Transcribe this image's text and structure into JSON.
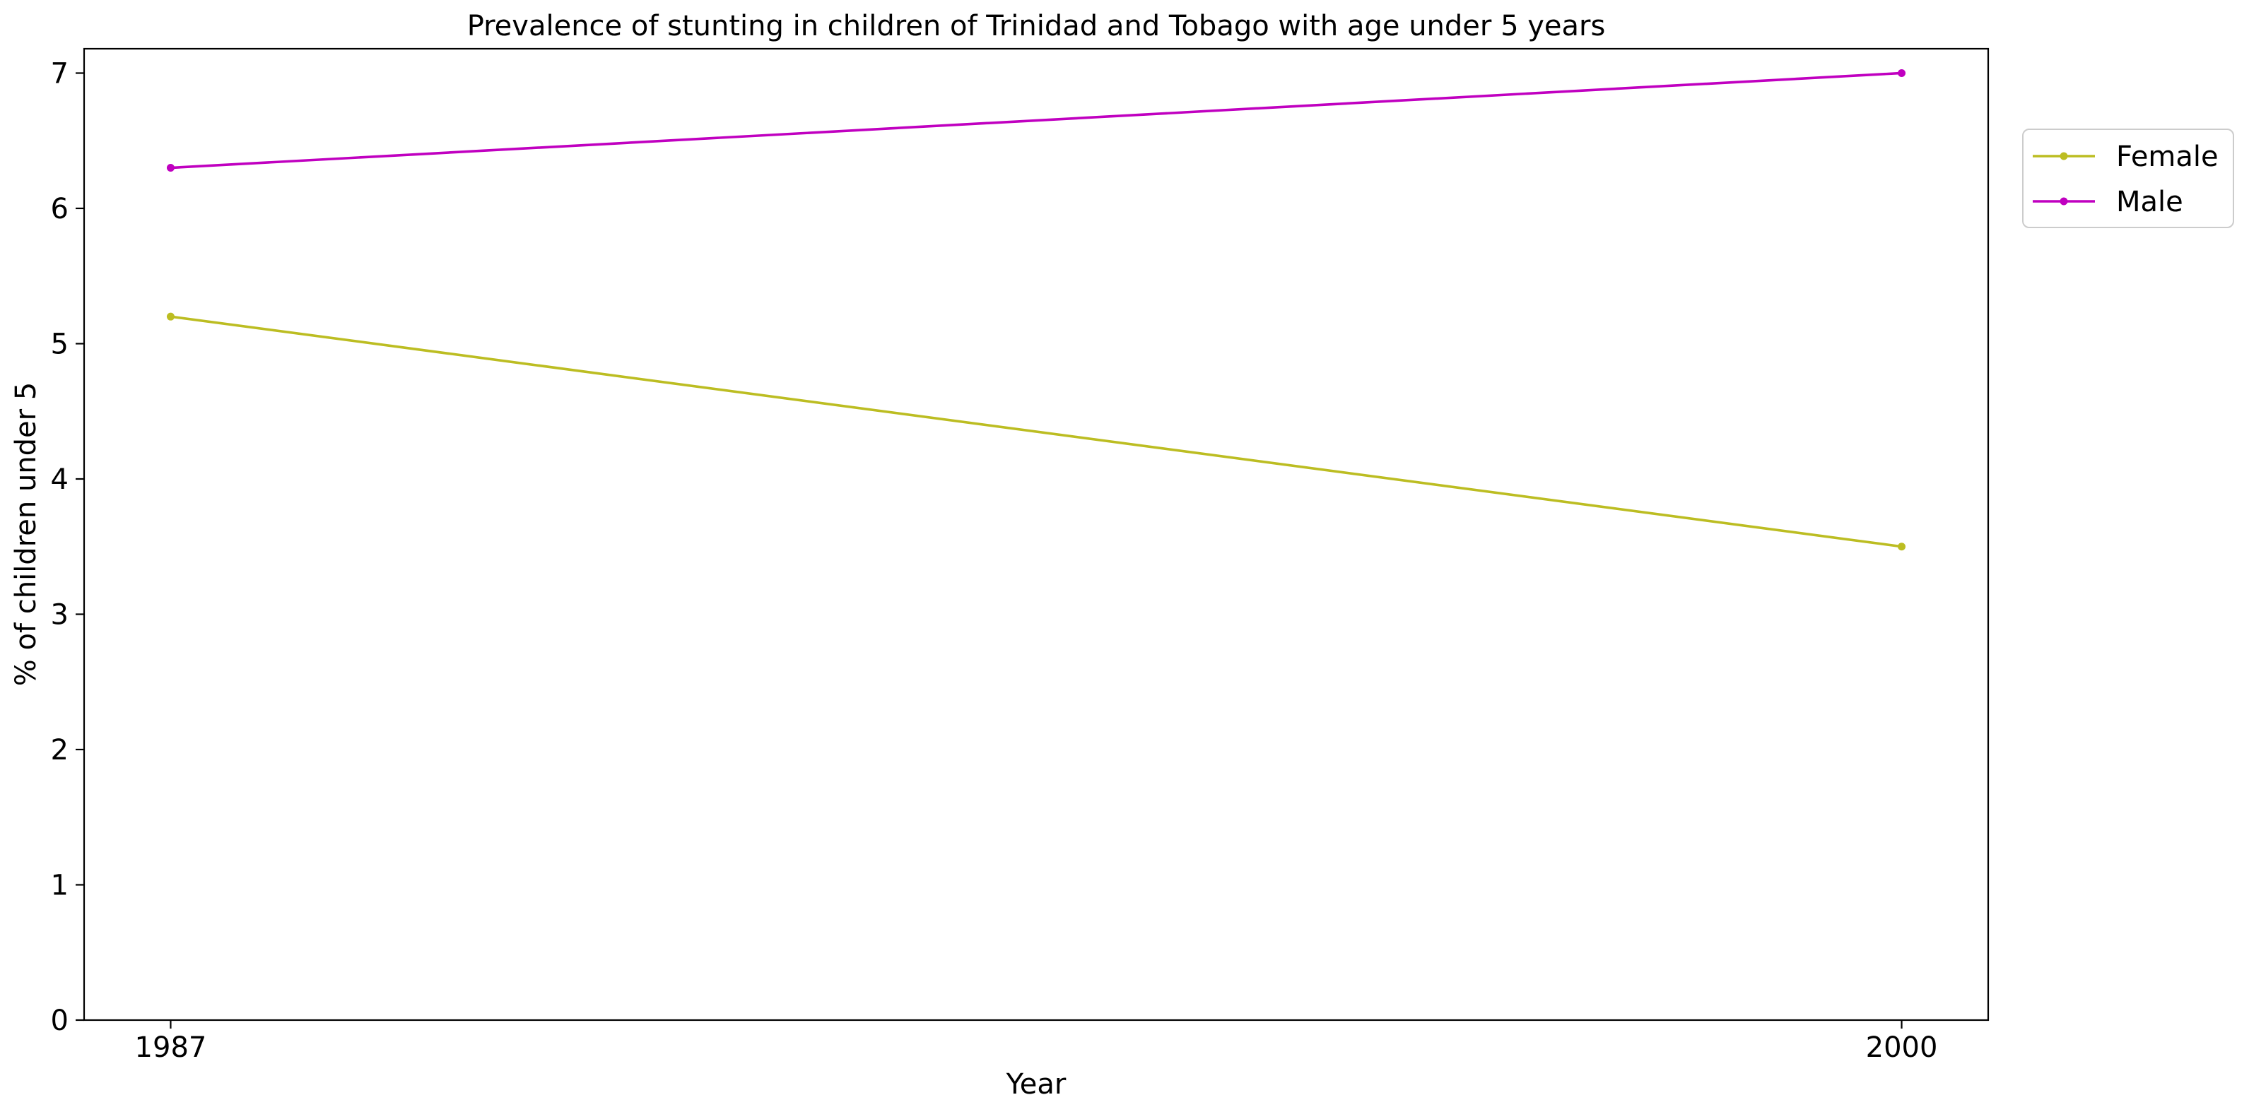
{
  "chart_data": {
    "type": "line",
    "title": "Prevalence of stunting in children of Trinidad and Tobago with age under 5 years",
    "xlabel": "Year",
    "ylabel": "% of children under 5",
    "x": [
      1987,
      2000
    ],
    "x_tick_labels": [
      "1987",
      "2000"
    ],
    "xlim": [
      1986.35,
      2000.65
    ],
    "ylim": [
      0,
      7.18
    ],
    "y_ticks": [
      0,
      1,
      2,
      3,
      4,
      5,
      6,
      7
    ],
    "y_tick_labels": [
      "0",
      "1",
      "2",
      "3",
      "4",
      "5",
      "6",
      "7"
    ],
    "grid": false,
    "legend_position": "outside-top-right",
    "series": [
      {
        "name": "Female",
        "color": "#bcbd22",
        "values": [
          5.2,
          3.5
        ]
      },
      {
        "name": "Male",
        "color": "#c000c0",
        "values": [
          6.3,
          7.0
        ]
      }
    ]
  }
}
